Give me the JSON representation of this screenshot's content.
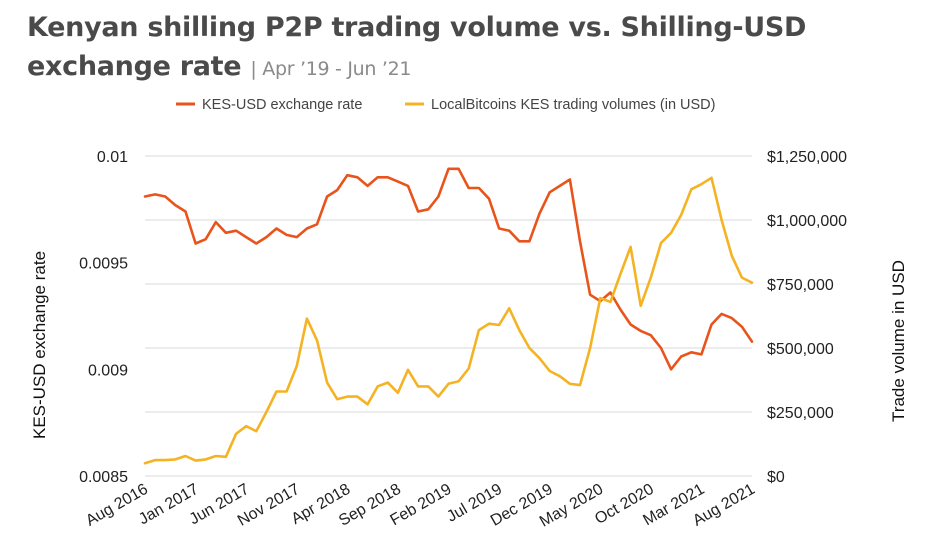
{
  "chart_data": {
    "type": "line",
    "title": "Kenyan shilling P2P trading volume vs. Shilling-USD exchange rate",
    "subtitle": "Apr ’19 - Jun ’21",
    "subtitle_separator": "|",
    "ylabel_left": "KES-USD exchange rate",
    "ylabel_right": "Trade volume in USD",
    "ylim_left": [
      0.0085,
      0.01
    ],
    "ylim_right": [
      0,
      1250000
    ],
    "yticks_left": [
      "0.01",
      "0.0095",
      "0.009",
      "0.0085"
    ],
    "yticks_left_values": [
      0.01,
      0.0095,
      0.009,
      0.0085
    ],
    "yticks_right": [
      "$1,250,000",
      "$1,000,000",
      "$750,000",
      "$500,000",
      "$250,000",
      "$0"
    ],
    "yticks_right_values": [
      1250000,
      1000000,
      750000,
      500000,
      250000,
      0
    ],
    "xticks": [
      "Aug 2016",
      "Jan 2017",
      "Jun 2017",
      "Nov 2017",
      "Apr 2018",
      "Sep 2018",
      "Feb 2019",
      "Jul 2019",
      "Dec 2019",
      "May 2020",
      "Oct 2020",
      "Mar 2021",
      "Aug 2021"
    ],
    "grid": true,
    "legend_position": "top",
    "series": [
      {
        "name": "KES-USD exchange rate",
        "axis": "left",
        "color": "#e8541c",
        "values": [
          0.00981,
          0.00982,
          0.00981,
          0.00977,
          0.00974,
          0.00959,
          0.00961,
          0.00969,
          0.00964,
          0.00965,
          0.00962,
          0.00959,
          0.00962,
          0.00966,
          0.00963,
          0.00962,
          0.00966,
          0.00968,
          0.00981,
          0.00984,
          0.00991,
          0.0099,
          0.00986,
          0.0099,
          0.0099,
          0.00988,
          0.00986,
          0.00974,
          0.00975,
          0.00981,
          0.00994,
          0.00994,
          0.00985,
          0.00985,
          0.0098,
          0.00966,
          0.00965,
          0.0096,
          0.0096,
          0.00973,
          0.00983,
          0.00986,
          0.00989,
          0.0096,
          0.00935,
          0.00932,
          0.00936,
          0.00928,
          0.00921,
          0.00918,
          0.00916,
          0.0091,
          0.009,
          0.00906,
          0.00908,
          0.00907,
          0.00921,
          0.00926,
          0.00924,
          0.0092,
          0.00913
        ]
      },
      {
        "name": "LocalBitcoins KES trading volumes (in USD)",
        "axis": "right",
        "color": "#f5b324",
        "values": [
          50000,
          62000,
          62000,
          65000,
          78000,
          60000,
          65000,
          78000,
          75000,
          165000,
          195000,
          175000,
          250000,
          330000,
          330000,
          430000,
          615000,
          530000,
          365000,
          300000,
          310000,
          310000,
          280000,
          350000,
          365000,
          325000,
          415000,
          350000,
          350000,
          310000,
          360000,
          370000,
          420000,
          570000,
          595000,
          590000,
          655000,
          570000,
          500000,
          460000,
          410000,
          390000,
          360000,
          355000,
          500000,
          695000,
          680000,
          790000,
          895000,
          665000,
          775000,
          910000,
          950000,
          1020000,
          1120000,
          1140000,
          1165000,
          1000000,
          860000,
          775000,
          755000
        ]
      }
    ]
  }
}
